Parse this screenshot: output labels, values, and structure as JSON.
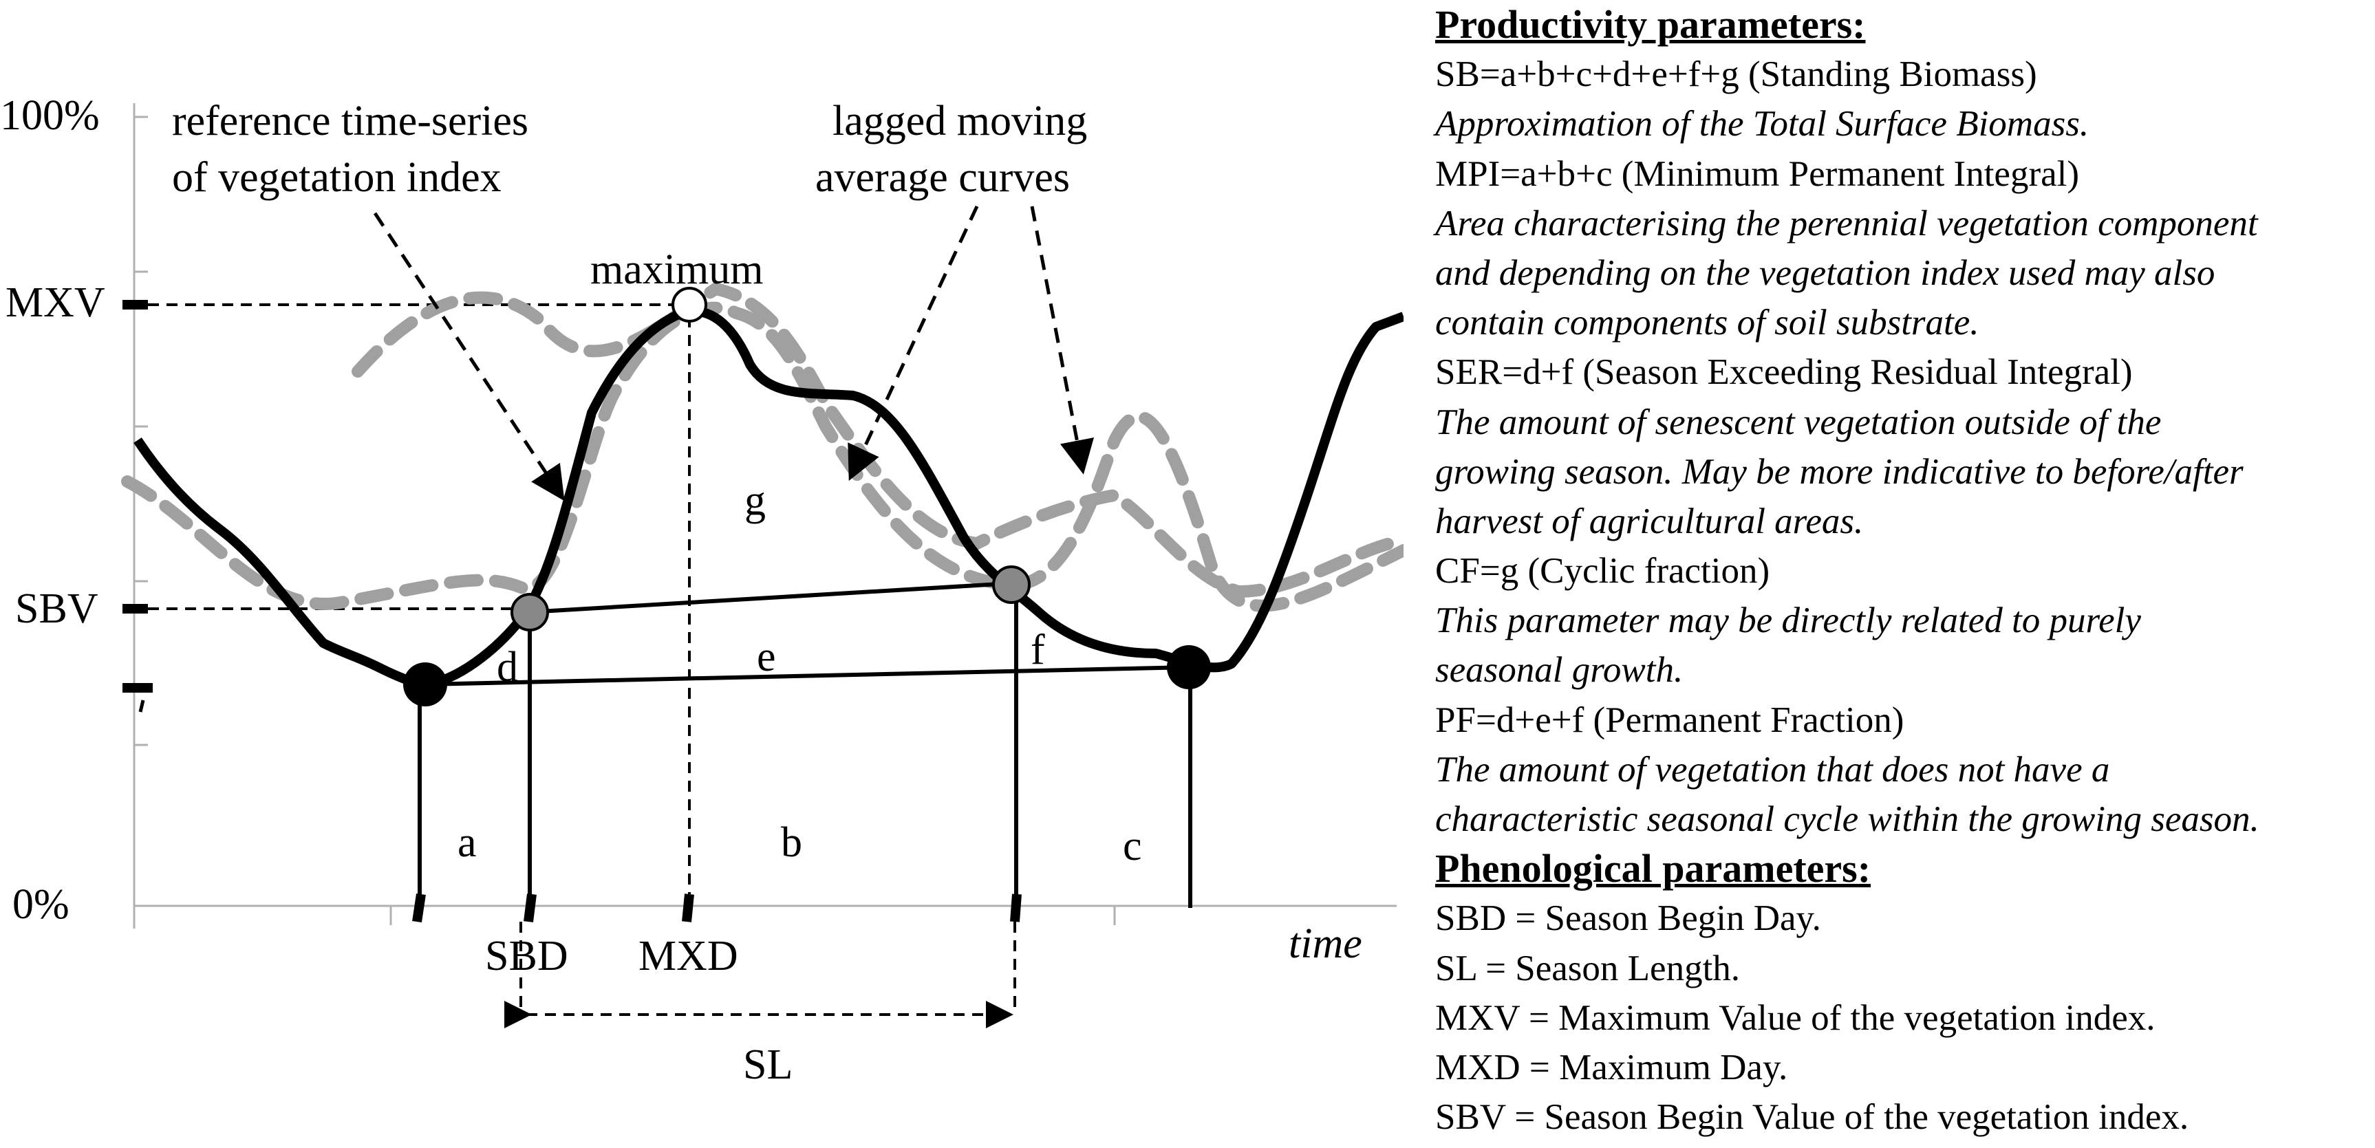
{
  "diagram": {
    "y_labels": {
      "top": "100%",
      "bottom": "0%",
      "mxv": "MXV",
      "sbv": "SBV"
    },
    "annotations": {
      "reference_line1": "reference time-series",
      "reference_line2": "of vegetation index",
      "lagged_line1": "lagged moving",
      "lagged_line2": "average curves",
      "maximum": "maximum"
    },
    "area_labels": {
      "a": "a",
      "b": "b",
      "c": "c",
      "d": "d",
      "e": "e",
      "f": "f",
      "g": "g"
    },
    "x_labels": {
      "sbd": "SBD",
      "mxd": "MXD",
      "time": "time",
      "sl": "SL"
    }
  },
  "legend": {
    "productivity_title": "Productivity parameters:",
    "productivity_lines": [
      {
        "text": "SB=a+b+c+d+e+f+g (Standing Biomass)",
        "italic": false
      },
      {
        "text": "Approximation of the Total Surface Biomass.",
        "italic": true
      },
      {
        "text": "MPI=a+b+c (Minimum Permanent Integral)",
        "italic": false
      },
      {
        "text": "Area characterising the perennial vegetation component",
        "italic": true
      },
      {
        "text": "and depending on the vegetation index used may also",
        "italic": true
      },
      {
        "text": "contain components of soil substrate.",
        "italic": true
      },
      {
        "text": "SER=d+f (Season Exceeding Residual Integral)",
        "italic": false
      },
      {
        "text": "The amount of senescent vegetation  outside of the",
        "italic": true
      },
      {
        "text": "growing season. May be more indicative to before/after",
        "italic": true
      },
      {
        "text": "harvest of agricultural areas.",
        "italic": true
      },
      {
        "text": "CF=g (Cyclic fraction)",
        "italic": false
      },
      {
        "text": "This parameter may be directly related to purely",
        "italic": true
      },
      {
        "text": "seasonal growth.",
        "italic": true
      },
      {
        "text": "PF=d+e+f (Permanent Fraction)",
        "italic": false
      },
      {
        "text": "The amount of vegetation that does not have a",
        "italic": true
      },
      {
        "text": "characteristic seasonal cycle within the growing season.",
        "italic": true
      }
    ],
    "phenological_title": "Phenological parameters:",
    "phenological_lines": [
      {
        "text": "SBD = Season Begin Day.",
        "italic": false
      },
      {
        "text": "SL = Season Length.",
        "italic": false
      },
      {
        "text": "MXV = Maximum Value of the vegetation index.",
        "italic": false
      },
      {
        "text": "MXD = Maximum Day.",
        "italic": false
      },
      {
        "text": "SBV = Season Begin Value of the vegetation index.",
        "italic": false
      }
    ]
  }
}
